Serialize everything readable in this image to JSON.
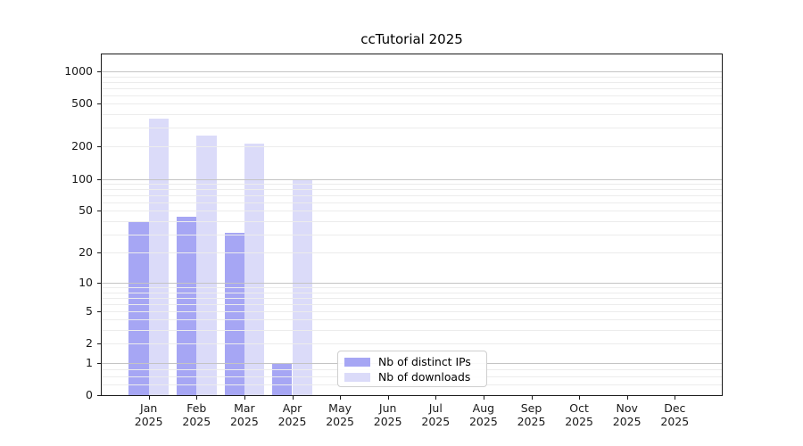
{
  "chart_data": {
    "type": "bar",
    "title": "ccTutorial 2025",
    "x_categories": [
      {
        "month": "Jan",
        "year": "2025"
      },
      {
        "month": "Feb",
        "year": "2025"
      },
      {
        "month": "Mar",
        "year": "2025"
      },
      {
        "month": "Apr",
        "year": "2025"
      },
      {
        "month": "May",
        "year": "2025"
      },
      {
        "month": "Jun",
        "year": "2025"
      },
      {
        "month": "Jul",
        "year": "2025"
      },
      {
        "month": "Aug",
        "year": "2025"
      },
      {
        "month": "Sep",
        "year": "2025"
      },
      {
        "month": "Oct",
        "year": "2025"
      },
      {
        "month": "Nov",
        "year": "2025"
      },
      {
        "month": "Dec",
        "year": "2025"
      }
    ],
    "series": [
      {
        "name": "Nb of distinct IPs",
        "color": "#a6a6f4",
        "values": [
          40,
          44,
          31,
          1,
          0,
          0,
          0,
          0,
          0,
          0,
          0,
          0
        ]
      },
      {
        "name": "Nb of downloads",
        "color": "#dbdbf9",
        "values": [
          365,
          255,
          213,
          97,
          0,
          0,
          0,
          0,
          0,
          0,
          0,
          0
        ]
      }
    ],
    "y_axis": {
      "scale": "log10(1+v)",
      "ticks": [
        0,
        1,
        2,
        5,
        10,
        20,
        50,
        100,
        200,
        500,
        1000
      ],
      "major_gridlines": [
        1,
        10,
        100,
        1000
      ],
      "minor_gridlines_per_decade": [
        2,
        3,
        4,
        5,
        6,
        7,
        8,
        9
      ],
      "range": [
        0,
        1380
      ]
    },
    "grid": {
      "horizontal": true,
      "drawn_above_bars": true
    },
    "legend": {
      "position": "inside-bottom-center"
    }
  }
}
